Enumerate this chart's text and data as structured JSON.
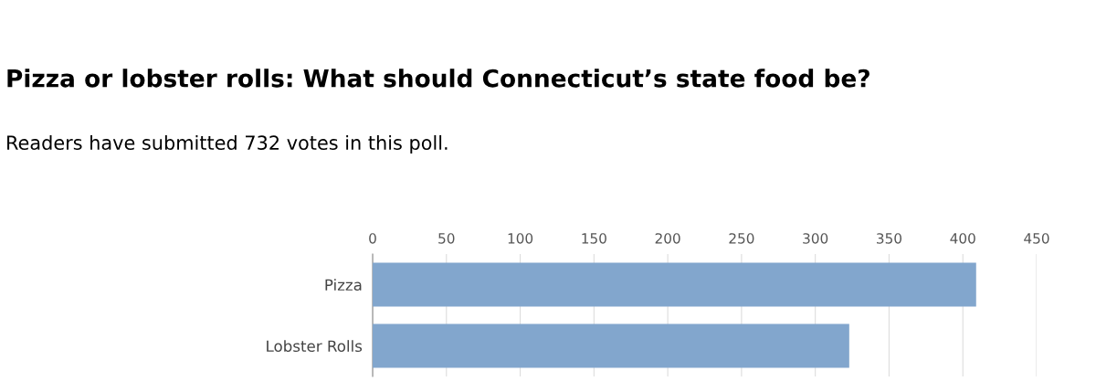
{
  "chart_data": {
    "type": "bar",
    "orientation": "horizontal",
    "title": "Pizza or lobster rolls: What should Connecticut’s state food be?",
    "subtitle": "Readers have submitted 732 votes in this poll.",
    "categories": [
      "Pizza",
      "Lobster Rolls"
    ],
    "values": [
      409,
      323
    ],
    "color": "#82a6cd",
    "xlim": [
      0,
      450
    ],
    "xticks": [
      0,
      50,
      100,
      150,
      200,
      250,
      300,
      350,
      400,
      450
    ],
    "grid": "x"
  }
}
